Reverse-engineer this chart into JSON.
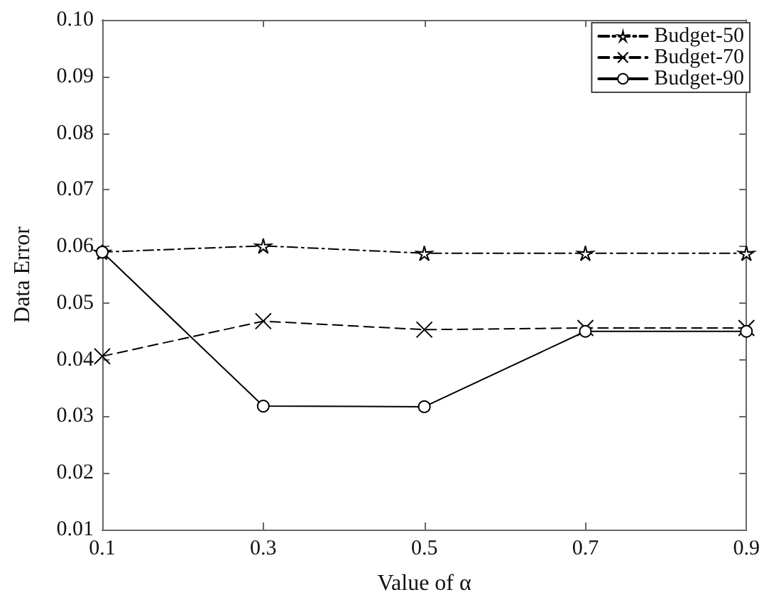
{
  "chart_data": {
    "type": "line",
    "xlabel": "Value of α",
    "ylabel": "Data Error",
    "x": [
      0.1,
      0.3,
      0.5,
      0.7,
      0.9
    ],
    "series": [
      {
        "name": "Budget-50",
        "color": "#000000",
        "marker": "star",
        "line_style": "dashdot",
        "values": [
          0.059,
          0.0601,
          0.0588,
          0.0588,
          0.0588
        ]
      },
      {
        "name": "Budget-70",
        "color": "#000000",
        "marker": "cross",
        "line_style": "dashed",
        "values": [
          0.0406,
          0.0468,
          0.0453,
          0.0456,
          0.0456
        ]
      },
      {
        "name": "Budget-90",
        "color": "#000000",
        "marker": "circle",
        "line_style": "solid",
        "values": [
          0.059,
          0.0318,
          0.0317,
          0.045,
          0.045
        ]
      }
    ],
    "xlim": [
      0.1,
      0.9
    ],
    "xticks": [
      0.1,
      0.3,
      0.5,
      0.7,
      0.9
    ],
    "ylim": [
      0.01,
      0.1
    ],
    "yticks": [
      0.01,
      0.02,
      0.03,
      0.04,
      0.05,
      0.06,
      0.07,
      0.08,
      0.09,
      {
        "value": 0.1,
        "label": "0.10"
      }
    ],
    "grid": false,
    "legend": "top right"
  }
}
